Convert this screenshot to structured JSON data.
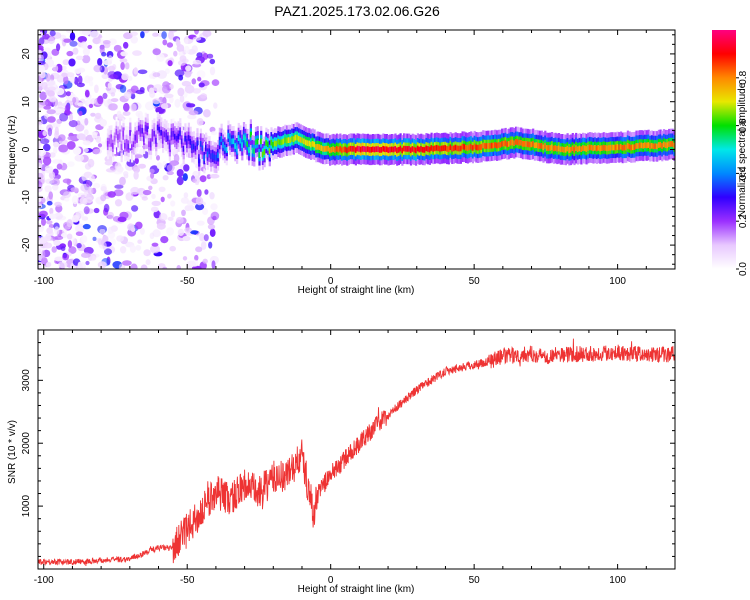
{
  "title": "PAZ1.2025.173.02.06.G26",
  "chart_data": [
    {
      "type": "heatmap",
      "xlabel": "Height of straight line (km)",
      "ylabel": "Frequency (Hz)",
      "xlim": [
        -102,
        120
      ],
      "ylim": [
        -25,
        25
      ],
      "x_ticks": [
        -100,
        -50,
        0,
        50,
        100
      ],
      "y_ticks": [
        -20,
        -10,
        0,
        10,
        20
      ],
      "colorbar": {
        "label": "Normalized spectral amplitude",
        "range": [
          0,
          1
        ],
        "ticks": [
          0.0,
          0.2,
          0.4,
          0.6,
          0.8
        ],
        "colors": [
          "#ffffff",
          "#e8c8ff",
          "#9b30ff",
          "#3000ff",
          "#0088ff",
          "#00e8e8",
          "#00e000",
          "#e8e800",
          "#ff8800",
          "#ff0000",
          "#ff0080"
        ]
      },
      "ridge": [
        {
          "x": -75,
          "y": 2,
          "amp": 0.2
        },
        {
          "x": -60,
          "y": 3,
          "amp": 0.25
        },
        {
          "x": -50,
          "y": 1,
          "amp": 0.3
        },
        {
          "x": -42,
          "y": -2,
          "amp": 0.35
        },
        {
          "x": -35,
          "y": 2.5,
          "amp": 0.45
        },
        {
          "x": -25,
          "y": 0.5,
          "amp": 0.6
        },
        {
          "x": -12,
          "y": 2.5,
          "amp": 0.7
        },
        {
          "x": -3,
          "y": 0,
          "amp": 0.75
        },
        {
          "x": 10,
          "y": 0,
          "amp": 0.95
        },
        {
          "x": 30,
          "y": 0,
          "amp": 0.9
        },
        {
          "x": 50,
          "y": 0.5,
          "amp": 0.85
        },
        {
          "x": 65,
          "y": 1.5,
          "amp": 0.8
        },
        {
          "x": 80,
          "y": 0,
          "amp": 0.8
        },
        {
          "x": 100,
          "y": 0.5,
          "amp": 0.8
        },
        {
          "x": 120,
          "y": 1,
          "amp": 0.8
        }
      ]
    },
    {
      "type": "line",
      "xlabel": "Height of straight line (km)",
      "ylabel": "SNR (10 * v/v)",
      "xlim": [
        -102,
        120
      ],
      "ylim": [
        0,
        3800
      ],
      "x_ticks": [
        -100,
        -50,
        0,
        50,
        100
      ],
      "y_ticks": [
        1000,
        2000,
        3000
      ],
      "color": "#ee3333",
      "series": [
        {
          "x": [
            -102,
            -90,
            -80,
            -70,
            -65,
            -60,
            -55,
            -50,
            -45,
            -40,
            -35,
            -30,
            -25,
            -20,
            -15,
            -10,
            -6,
            -4,
            0,
            5,
            10,
            15,
            20,
            25,
            30,
            35,
            40,
            45,
            50,
            55,
            58,
            60,
            65,
            70,
            75,
            80,
            90,
            100,
            110,
            120
          ],
          "values": [
            120,
            110,
            140,
            160,
            250,
            340,
            330,
            620,
            900,
            1250,
            1100,
            1350,
            1200,
            1450,
            1500,
            1800,
            900,
            1250,
            1500,
            1750,
            2000,
            2250,
            2450,
            2650,
            2850,
            3000,
            3150,
            3200,
            3250,
            3300,
            3350,
            3380,
            3400,
            3420,
            3380,
            3410,
            3420,
            3450,
            3400,
            3420
          ]
        }
      ]
    }
  ]
}
